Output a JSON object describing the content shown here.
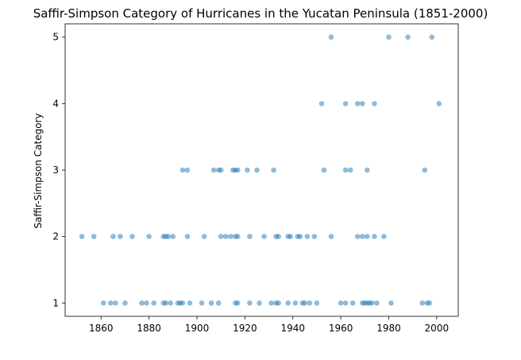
{
  "chart_data": {
    "type": "scatter",
    "title": "Saffir-Simpson Category of Hurricanes in the Yucatan Peninsula (1851-2000)",
    "xlabel": "",
    "ylabel": "Saffir-Simpson Category",
    "xlim": [
      1845,
      2009
    ],
    "ylim": [
      0.8,
      5.2
    ],
    "xticks": [
      1860,
      1880,
      1900,
      1920,
      1940,
      1960,
      1980,
      2000
    ],
    "yticks": [
      1,
      2,
      3,
      4,
      5
    ],
    "grid": false,
    "point_color": "#1f77b4",
    "series": [
      {
        "points": [
          [
            1861,
            1
          ],
          [
            1864,
            1
          ],
          [
            1866,
            1
          ],
          [
            1870,
            1
          ],
          [
            1877,
            1
          ],
          [
            1879,
            1
          ],
          [
            1882,
            1
          ],
          [
            1886,
            1
          ],
          [
            1887,
            1
          ],
          [
            1889,
            1
          ],
          [
            1892,
            1
          ],
          [
            1893,
            1
          ],
          [
            1894,
            1
          ],
          [
            1897,
            1
          ],
          [
            1902,
            1
          ],
          [
            1906,
            1
          ],
          [
            1909,
            1
          ],
          [
            1916,
            1
          ],
          [
            1917,
            1
          ],
          [
            1922,
            1
          ],
          [
            1926,
            1
          ],
          [
            1931,
            1
          ],
          [
            1933,
            1
          ],
          [
            1934,
            1
          ],
          [
            1938,
            1
          ],
          [
            1941,
            1
          ],
          [
            1944,
            1
          ],
          [
            1945,
            1
          ],
          [
            1947,
            1
          ],
          [
            1950,
            1
          ],
          [
            1960,
            1
          ],
          [
            1962,
            1
          ],
          [
            1965,
            1
          ],
          [
            1969,
            1
          ],
          [
            1970,
            1
          ],
          [
            1971,
            1
          ],
          [
            1972,
            1
          ],
          [
            1973,
            1
          ],
          [
            1975,
            1
          ],
          [
            1981,
            1
          ],
          [
            1994,
            1
          ],
          [
            1996,
            1
          ],
          [
            1997,
            1
          ],
          [
            1852,
            2
          ],
          [
            1857,
            2
          ],
          [
            1865,
            2
          ],
          [
            1868,
            2
          ],
          [
            1873,
            2
          ],
          [
            1880,
            2
          ],
          [
            1886,
            2
          ],
          [
            1887,
            2
          ],
          [
            1888,
            2
          ],
          [
            1890,
            2
          ],
          [
            1896,
            2
          ],
          [
            1903,
            2
          ],
          [
            1910,
            2
          ],
          [
            1912,
            2
          ],
          [
            1914,
            2
          ],
          [
            1916,
            2
          ],
          [
            1917,
            2
          ],
          [
            1922,
            2
          ],
          [
            1928,
            2
          ],
          [
            1933,
            2
          ],
          [
            1934,
            2
          ],
          [
            1938,
            2
          ],
          [
            1939,
            2
          ],
          [
            1942,
            2
          ],
          [
            1943,
            2
          ],
          [
            1946,
            2
          ],
          [
            1949,
            2
          ],
          [
            1956,
            2
          ],
          [
            1967,
            2
          ],
          [
            1969,
            2
          ],
          [
            1971,
            2
          ],
          [
            1974,
            2
          ],
          [
            1978,
            2
          ],
          [
            1894,
            3
          ],
          [
            1896,
            3
          ],
          [
            1907,
            3
          ],
          [
            1909,
            3
          ],
          [
            1910,
            3
          ],
          [
            1915,
            3
          ],
          [
            1916,
            3
          ],
          [
            1917,
            3
          ],
          [
            1921,
            3
          ],
          [
            1925,
            3
          ],
          [
            1932,
            3
          ],
          [
            1953,
            3
          ],
          [
            1962,
            3
          ],
          [
            1964,
            3
          ],
          [
            1971,
            3
          ],
          [
            1995,
            3
          ],
          [
            1952,
            4
          ],
          [
            1962,
            4
          ],
          [
            1967,
            4
          ],
          [
            1969,
            4
          ],
          [
            1974,
            4
          ],
          [
            2001,
            4
          ],
          [
            1956,
            5
          ],
          [
            1980,
            5
          ],
          [
            1988,
            5
          ],
          [
            1998,
            5
          ]
        ]
      }
    ]
  }
}
